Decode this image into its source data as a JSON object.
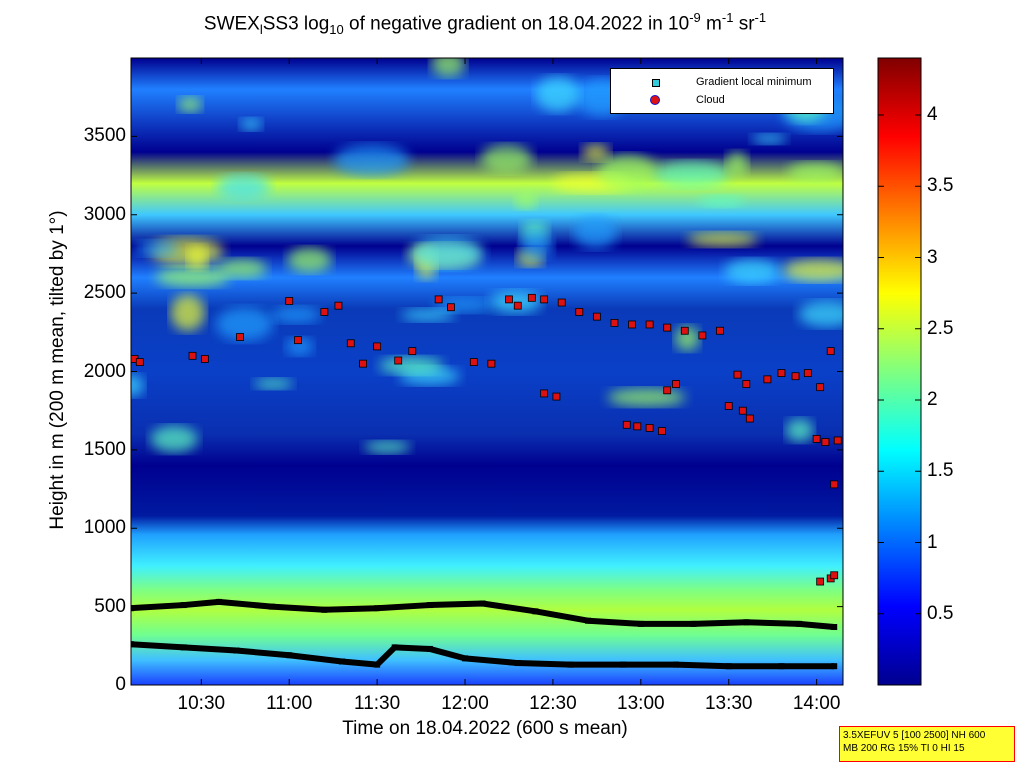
{
  "title": {
    "part1": "SWEX",
    "sub1": "l",
    "part2": "SS3 log",
    "sub2": "10",
    "part3": " of negative gradient on 18.04.2022 in 10",
    "sup1": "-9",
    "part4": " m",
    "sup2": "-1",
    "part5": " sr",
    "sup3": "-1"
  },
  "legend": {
    "gradient_label": "Gradient local minimum",
    "cloud_label": "Cloud",
    "gradient_icon": "cyan-square-marker",
    "cloud_icon": "red-circle-blue-edge-marker"
  },
  "infobox": {
    "line1": "3.5XEFUV 5 [100 2500] NH 600",
    "line2": "MB 200 RG 15% TI 0 HI 15"
  },
  "colors": {
    "low": "#00008f",
    "high": "#800000",
    "gradient_marker": "#33ccdd",
    "cloud_marker": "#dd1111",
    "trace": "#000000"
  },
  "chart_data": {
    "type": "heatmap",
    "title": "SWEXlSS3 log10 of negative gradient on 18.04.2022 in 10^-9 m^-1 sr^-1",
    "xlabel": "Time on 18.04.2022 (600 s mean)",
    "ylabel": "Height in m (200 m mean, tilted by 1°)",
    "x_range_hours": [
      10.1,
      14.15
    ],
    "x_ticks": [
      {
        "hour": 10.5,
        "label": "10:30"
      },
      {
        "hour": 11.0,
        "label": "11:00"
      },
      {
        "hour": 11.5,
        "label": "11:30"
      },
      {
        "hour": 12.0,
        "label": "12:00"
      },
      {
        "hour": 12.5,
        "label": "12:30"
      },
      {
        "hour": 13.0,
        "label": "13:00"
      },
      {
        "hour": 13.5,
        "label": "13:30"
      },
      {
        "hour": 14.0,
        "label": "14:00"
      }
    ],
    "ylim": [
      0,
      4000
    ],
    "y_ticks": [
      0,
      500,
      1000,
      1500,
      2000,
      2500,
      3000,
      3500
    ],
    "colorbar": {
      "range": [
        0,
        4.4
      ],
      "ticks": [
        "0.5",
        "1",
        "1.5",
        "2",
        "2.5",
        "3",
        "3.5",
        "4"
      ],
      "colormap": "jet"
    },
    "layers": [
      {
        "name": "surface",
        "h": [
          0,
          150
        ],
        "value": 1.6
      },
      {
        "name": "boundary",
        "h": [
          150,
          800
        ],
        "value": 2.4
      },
      {
        "name": "transition",
        "h": [
          800,
          1050
        ],
        "value": 1.5
      },
      {
        "name": "lower",
        "h": [
          1050,
          1400
        ],
        "value": 0.6
      },
      {
        "name": "cloud_band",
        "h": [
          1400,
          2600
        ],
        "value": 1.4
      },
      {
        "name": "upper",
        "h": [
          2600,
          4000
        ],
        "value": 1.3
      }
    ],
    "series": [
      {
        "name": "Gradient local minimum",
        "type": "trace",
        "x": [
          10.1,
          10.4,
          10.6,
          10.9,
          11.2,
          11.5,
          11.8,
          12.1,
          12.4,
          12.7,
          13.0,
          13.3,
          13.6,
          13.9,
          14.1
        ],
        "y": [
          490,
          510,
          530,
          500,
          480,
          490,
          510,
          520,
          470,
          410,
          390,
          390,
          400,
          390,
          370
        ]
      },
      {
        "name": "Gradient local minimum",
        "type": "trace",
        "x": [
          10.1,
          10.4,
          10.7,
          11.0,
          11.3,
          11.5,
          11.6,
          11.8,
          12.0,
          12.3,
          12.6,
          12.9,
          13.2,
          13.5,
          13.8,
          14.1
        ],
        "y": [
          260,
          240,
          220,
          190,
          150,
          130,
          240,
          230,
          170,
          140,
          130,
          130,
          130,
          120,
          120,
          120
        ]
      },
      {
        "name": "Cloud",
        "type": "scatter",
        "x": [
          10.12,
          10.15,
          10.45,
          10.52,
          10.72,
          11.0,
          11.05,
          11.2,
          11.28,
          11.35,
          11.42,
          11.5,
          11.62,
          11.7,
          11.85,
          11.92,
          12.05,
          12.15,
          12.25,
          12.3,
          12.38,
          12.45,
          12.55,
          12.65,
          12.75,
          12.85,
          12.95,
          13.05,
          13.15,
          13.25,
          13.35,
          13.45,
          13.55,
          13.6,
          13.72,
          13.8,
          13.88,
          13.95,
          14.02,
          14.08,
          14.12,
          14.0,
          14.05,
          14.1,
          13.15,
          13.2,
          12.45,
          12.52,
          12.92,
          12.98,
          13.05,
          13.12,
          13.5,
          13.58,
          13.62,
          14.02,
          14.08,
          14.1
        ],
        "y": [
          2080,
          2060,
          2100,
          2080,
          2220,
          2450,
          2200,
          2380,
          2420,
          2180,
          2050,
          2160,
          2070,
          2130,
          2460,
          2410,
          2060,
          2050,
          2460,
          2420,
          2470,
          2460,
          2440,
          2380,
          2350,
          2310,
          2300,
          2300,
          2280,
          2260,
          2230,
          2260,
          1980,
          1920,
          1950,
          1990,
          1970,
          1990,
          1900,
          2130,
          1560,
          1570,
          1550,
          1280,
          1880,
          1920,
          1860,
          1840,
          1660,
          1650,
          1640,
          1620,
          1780,
          1750,
          1700,
          660,
          680,
          700
        ]
      }
    ]
  }
}
